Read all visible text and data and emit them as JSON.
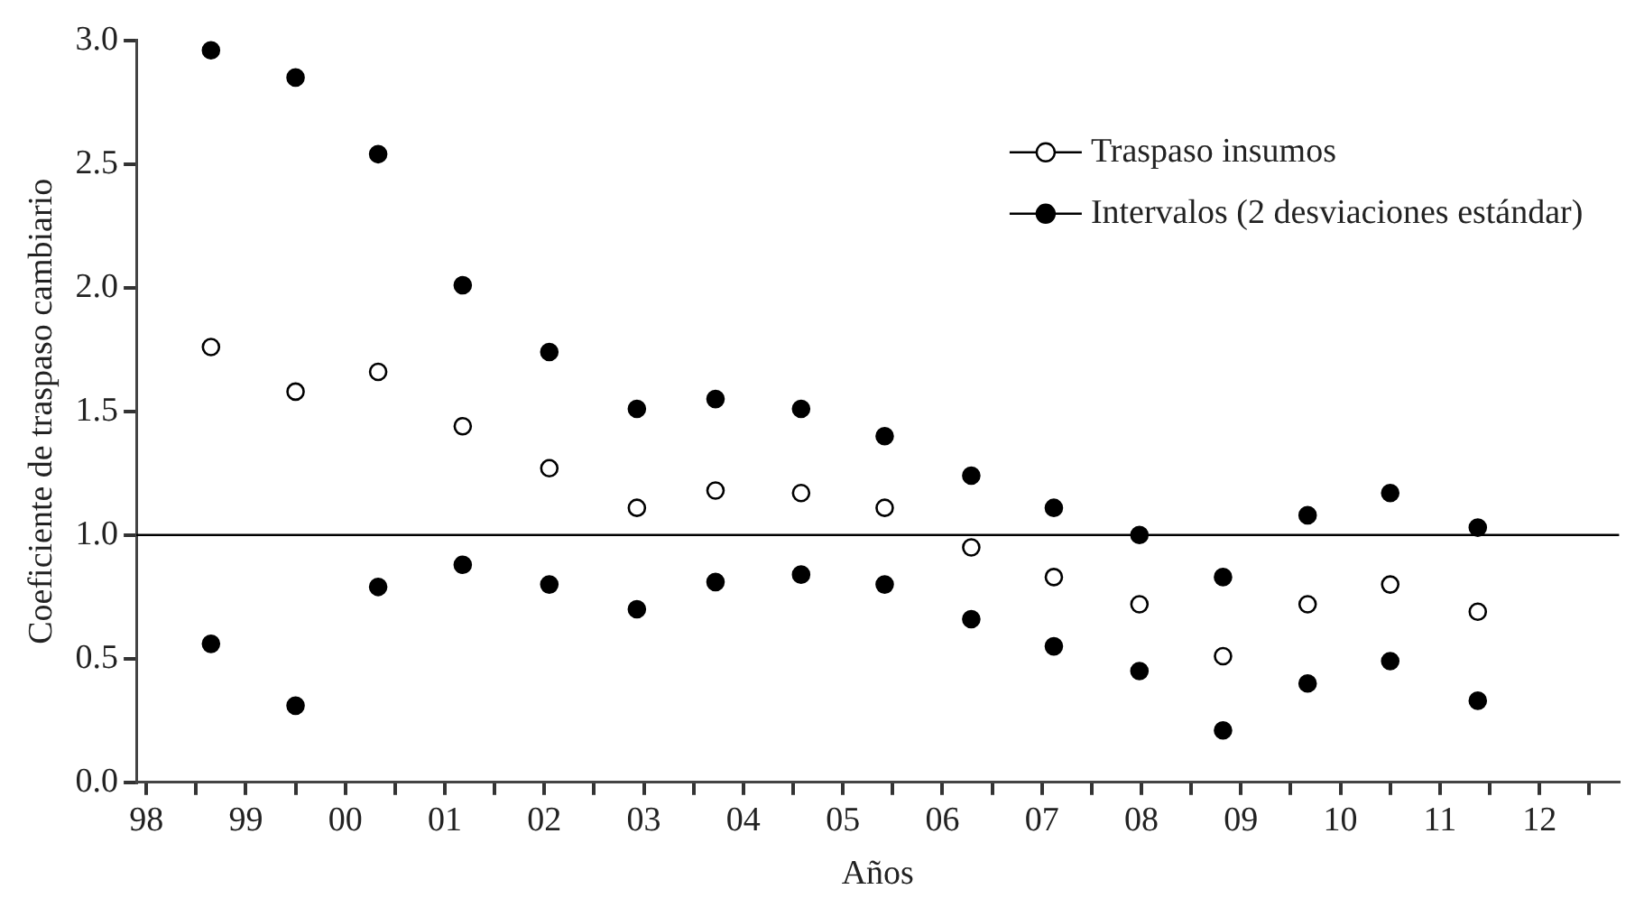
{
  "chart_data": {
    "type": "scatter",
    "xlabel": "Años",
    "ylabel": "Coeficiente de traspaso cambiario",
    "x": [
      1998.65,
      1999.5,
      2000.33,
      2001.18,
      2002.05,
      2002.93,
      2003.72,
      2004.58,
      2005.42,
      2006.29,
      2007.12,
      2007.98,
      2008.82,
      2009.67,
      2010.5,
      2011.38
    ],
    "series": [
      {
        "name": "Traspaso insumos",
        "color": "#ffffff",
        "marker": "circle",
        "values": [
          1.76,
          1.58,
          1.66,
          1.44,
          1.27,
          1.11,
          1.18,
          1.17,
          1.11,
          0.95,
          0.83,
          0.72,
          0.51,
          0.72,
          0.8,
          0.69
        ]
      },
      {
        "name": "Intervalos (2 desviaciones estándar)",
        "color": "#000000",
        "marker": "circle",
        "values": [
          2.96,
          2.85,
          2.54,
          2.01,
          1.74,
          1.51,
          1.55,
          1.51,
          1.4,
          1.24,
          1.11,
          1.0,
          0.83,
          1.08,
          1.17,
          1.03
        ]
      },
      {
        "color": "#000000",
        "marker": "circle",
        "values": [
          0.56,
          0.31,
          0.79,
          0.88,
          0.8,
          0.7,
          0.81,
          0.84,
          0.8,
          0.66,
          0.55,
          0.45,
          0.21,
          0.4,
          0.49,
          0.33
        ]
      }
    ],
    "xlim": [
      1997.9,
      2012.8
    ],
    "xticks": [
      {
        "value": 1998,
        "label": "98"
      },
      {
        "value": 1998.5,
        "label": null
      },
      {
        "value": 1999,
        "label": "99"
      },
      {
        "value": 1999.5,
        "label": null
      },
      {
        "value": 2000,
        "label": "00"
      },
      {
        "value": 2000.5,
        "label": null
      },
      {
        "value": 2001,
        "label": "01"
      },
      {
        "value": 2001.5,
        "label": null
      },
      {
        "value": 2002,
        "label": "02"
      },
      {
        "value": 2002.5,
        "label": null
      },
      {
        "value": 2003,
        "label": "03"
      },
      {
        "value": 2003.5,
        "label": null
      },
      {
        "value": 2004,
        "label": "04"
      },
      {
        "value": 2004.5,
        "label": null
      },
      {
        "value": 2005,
        "label": "05"
      },
      {
        "value": 2005.5,
        "label": null
      },
      {
        "value": 2006,
        "label": "06"
      },
      {
        "value": 2006.5,
        "label": null
      },
      {
        "value": 2007,
        "label": "07"
      },
      {
        "value": 2007.5,
        "label": null
      },
      {
        "value": 2008,
        "label": "08"
      },
      {
        "value": 2008.5,
        "label": null
      },
      {
        "value": 2009,
        "label": "09"
      },
      {
        "value": 2009.5,
        "label": null
      },
      {
        "value": 2010,
        "label": "10"
      },
      {
        "value": 2010.5,
        "label": null
      },
      {
        "value": 2011,
        "label": "11"
      },
      {
        "value": 2011.5,
        "label": null
      },
      {
        "value": 2012,
        "label": "12"
      },
      {
        "value": 2012.5,
        "label": null
      }
    ],
    "ylim": [
      0,
      3
    ],
    "yticks": [
      {
        "value": 0,
        "label": "0.0"
      },
      {
        "value": 0.5,
        "label": "0.5"
      },
      {
        "value": 1,
        "label": "1.0"
      },
      {
        "value": 1.5,
        "label": "1.5"
      },
      {
        "value": 2,
        "label": "2.0"
      },
      {
        "value": 2.5,
        "label": "2.5"
      },
      {
        "value": 3,
        "label": "3.0"
      }
    ],
    "ref_lines": [
      {
        "axis": "y",
        "value": 1,
        "color": "#000000"
      }
    ],
    "legend": "top right"
  }
}
